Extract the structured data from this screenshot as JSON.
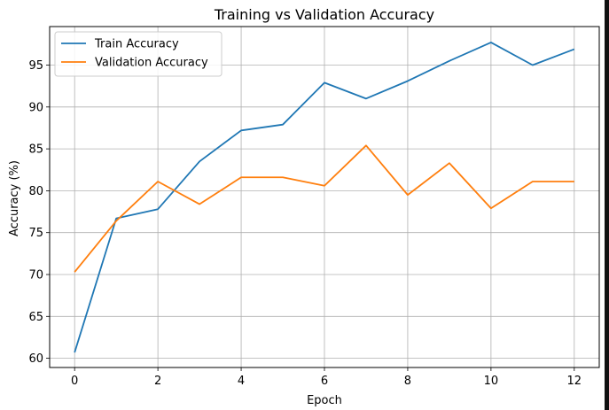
{
  "chart_data": {
    "type": "line",
    "title": "Training vs Validation Accuracy",
    "xlabel": "Epoch",
    "ylabel": "Accuracy (%)",
    "x": [
      0,
      1,
      2,
      3,
      4,
      5,
      6,
      7,
      8,
      9,
      10,
      11,
      12
    ],
    "xlim": [
      -0.6,
      12.6
    ],
    "ylim": [
      58.9,
      99.6
    ],
    "xticks": [
      0,
      2,
      4,
      6,
      8,
      10,
      12
    ],
    "yticks": [
      60,
      65,
      70,
      75,
      80,
      85,
      90,
      95
    ],
    "grid": true,
    "legend": "top-left",
    "series": [
      {
        "name": "Train Accuracy",
        "color": "#1f77b4",
        "values": [
          60.7,
          76.7,
          77.8,
          83.5,
          87.2,
          87.9,
          92.9,
          91.0,
          93.1,
          95.5,
          97.7,
          95.0,
          96.9
        ]
      },
      {
        "name": "Validation Accuracy",
        "color": "#ff7f0e",
        "values": [
          70.3,
          76.4,
          81.1,
          78.4,
          81.6,
          81.6,
          80.6,
          85.4,
          79.5,
          83.3,
          77.9,
          81.1,
          81.1
        ]
      }
    ]
  }
}
